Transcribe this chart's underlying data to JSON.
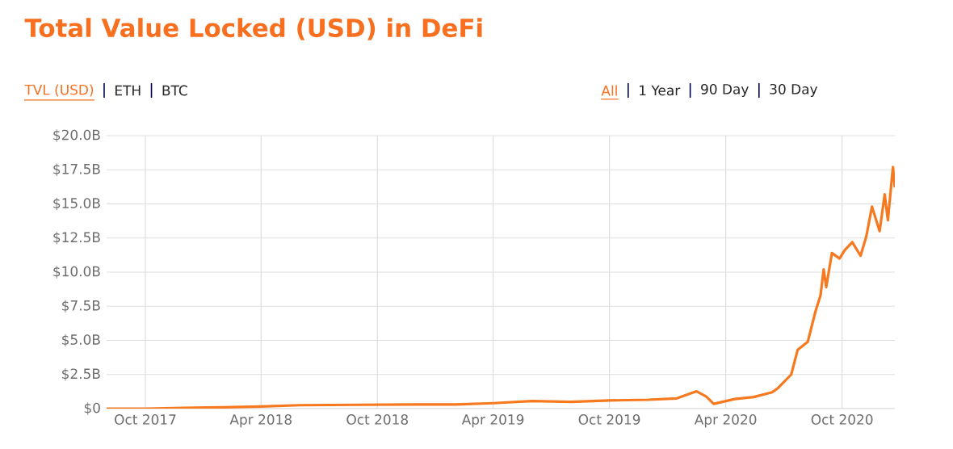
{
  "chart_data": {
    "type": "line",
    "title": "Total Value Locked (USD) in DeFi",
    "annotations": [
      "TVL (USD)",
      "ETH",
      "BTC",
      "All",
      "1 Year",
      "90 Day",
      "30 Day"
    ],
    "x": [
      "2017-08-01",
      "2017-10-01",
      "2017-12-01",
      "2018-02-01",
      "2018-04-01",
      "2018-06-01",
      "2018-09-01",
      "2018-12-01",
      "2019-02-01",
      "2019-04-01",
      "2019-06-01",
      "2019-08-01",
      "2019-10-01",
      "2019-12-01",
      "2020-01-15",
      "2020-02-15",
      "2020-03-01",
      "2020-03-13",
      "2020-04-15",
      "2020-05-15",
      "2020-06-13",
      "2020-06-22",
      "2020-07-13",
      "2020-07-23",
      "2020-08-08",
      "2020-08-20",
      "2020-08-28",
      "2020-09-02",
      "2020-09-06",
      "2020-09-15",
      "2020-09-27",
      "2020-10-05",
      "2020-10-17",
      "2020-10-30",
      "2020-11-08",
      "2020-11-17",
      "2020-11-29",
      "2020-12-07",
      "2020-12-12",
      "2020-12-20",
      "2020-12-23"
    ],
    "series": [
      {
        "color": "#f7791f",
        "values": [
          0.0,
          0.0,
          0.05,
          0.1,
          0.15,
          0.25,
          0.28,
          0.3,
          0.3,
          0.4,
          0.55,
          0.5,
          0.6,
          0.65,
          0.75,
          1.27,
          0.9,
          0.35,
          0.7,
          0.85,
          1.2,
          1.5,
          2.5,
          4.3,
          4.9,
          7.1,
          8.3,
          10.2,
          8.9,
          11.4,
          11.0,
          11.6,
          12.2,
          11.2,
          12.6,
          14.8,
          13.0,
          15.7,
          13.8,
          17.7,
          16.2
        ]
      }
    ],
    "xlim": [
      "2017-08-01",
      "2020-12-23"
    ],
    "xticks": [
      {
        "value": "2017-10-01",
        "label": "Oct 2017"
      },
      {
        "value": "2018-04-01",
        "label": "Apr 2018"
      },
      {
        "value": "2018-10-01",
        "label": "Oct 2018"
      },
      {
        "value": "2019-04-01",
        "label": "Apr 2019"
      },
      {
        "value": "2019-10-01",
        "label": "Oct 2019"
      },
      {
        "value": "2020-04-01",
        "label": "Apr 2020"
      },
      {
        "value": "2020-10-01",
        "label": "Oct 2020"
      }
    ],
    "ylim": [
      0,
      20
    ],
    "yticks": [
      {
        "value": 0,
        "label": "$0"
      },
      {
        "value": 2.5,
        "label": "$2.5B"
      },
      {
        "value": 5,
        "label": "$5.0B"
      },
      {
        "value": 7.5,
        "label": "$7.5B"
      },
      {
        "value": 10,
        "label": "$10.0B"
      },
      {
        "value": 12.5,
        "label": "$12.5B"
      },
      {
        "value": 15,
        "label": "$15.0B"
      },
      {
        "value": 17.5,
        "label": "$17.5B"
      },
      {
        "value": 20,
        "label": "$20.0B"
      }
    ],
    "grid": true
  }
}
